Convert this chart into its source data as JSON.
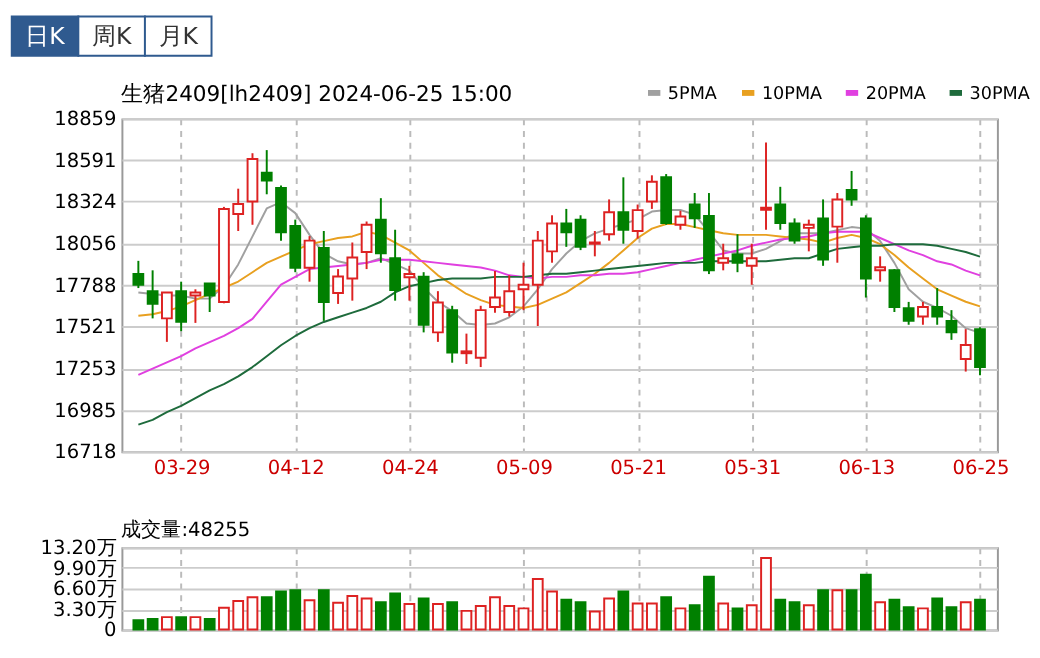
{
  "chart_data": [
    {
      "type": "candlestick",
      "title": "生猪2409[lh2409] 2024-06-25 15:00",
      "annotations": [
        "日K",
        "周K",
        "月K"
      ],
      "categories": [
        null,
        null,
        null,
        "03-29",
        null,
        null,
        null,
        null,
        null,
        null,
        null,
        "04-12",
        null,
        null,
        null,
        null,
        null,
        null,
        null,
        "04-24",
        null,
        null,
        null,
        null,
        null,
        null,
        null,
        "05-09",
        null,
        null,
        null,
        null,
        null,
        null,
        null,
        "05-21",
        null,
        null,
        null,
        null,
        null,
        null,
        null,
        "05-31",
        null,
        null,
        null,
        null,
        null,
        null,
        null,
        "06-13",
        null,
        null,
        null,
        null,
        null,
        null,
        null,
        "06-25"
      ],
      "ohlc": [
        [
          17858,
          17943,
          17768,
          17789
        ],
        [
          17748,
          17882,
          17573,
          17667
        ],
        [
          17573,
          17740,
          17422,
          17740
        ],
        [
          17748,
          17809,
          17491,
          17552
        ],
        [
          17720,
          17760,
          17544,
          17740
        ],
        [
          17797,
          17797,
          17614,
          17720
        ],
        [
          17679,
          18290,
          17670,
          18277
        ],
        [
          18244,
          18407,
          18135,
          18309
        ],
        [
          18324,
          18635,
          18175,
          18598
        ],
        [
          18509,
          18655,
          18371,
          18460
        ],
        [
          18411,
          18428,
          18073,
          18126
        ],
        [
          18167,
          18208,
          17870,
          17898
        ],
        [
          17898,
          18102,
          17809,
          18073
        ],
        [
          18025,
          18135,
          17557,
          17679
        ],
        [
          17736,
          17890,
          17666,
          17842
        ],
        [
          17829,
          18061,
          17687,
          17964
        ],
        [
          18000,
          18196,
          17890,
          18175
        ],
        [
          18208,
          18346,
          17931,
          17992
        ],
        [
          17960,
          18143,
          17687,
          17756
        ],
        [
          17838,
          17911,
          17687,
          17858
        ],
        [
          17841,
          17870,
          17483,
          17532
        ],
        [
          17483,
          17748,
          17422,
          17675
        ],
        [
          17626,
          17654,
          17288,
          17353
        ],
        [
          17349,
          17475,
          17280,
          17361
        ],
        [
          17320,
          17654,
          17260,
          17626
        ],
        [
          17646,
          17878,
          17610,
          17707
        ],
        [
          17614,
          17850,
          17585,
          17748
        ],
        [
          17760,
          17931,
          17626,
          17789
        ],
        [
          17789,
          18135,
          17524,
          18073
        ],
        [
          18004,
          18236,
          17931,
          18183
        ],
        [
          18183,
          18277,
          18033,
          18126
        ],
        [
          18208,
          18236,
          18012,
          18033
        ],
        [
          18053,
          18135,
          17972,
          18061
        ],
        [
          18114,
          18338,
          18073,
          18256
        ],
        [
          18256,
          18480,
          18053,
          18143
        ],
        [
          18135,
          18305,
          18086,
          18269
        ],
        [
          18324,
          18493,
          18277,
          18452
        ],
        [
          18480,
          18501,
          18175,
          18187
        ],
        [
          18175,
          18265,
          18143,
          18228
        ],
        [
          18305,
          18379,
          18155,
          18216
        ],
        [
          18232,
          18379,
          17858,
          17882
        ],
        [
          17931,
          18053,
          17882,
          17960
        ],
        [
          17984,
          18114,
          17870,
          17931
        ],
        [
          17911,
          18053,
          17789,
          17960
        ],
        [
          18272,
          18704,
          18143,
          18285
        ],
        [
          18305,
          18419,
          18143,
          18187
        ],
        [
          18183,
          18216,
          18053,
          18073
        ],
        [
          18155,
          18208,
          18004,
          18175
        ],
        [
          18216,
          18338,
          17911,
          17951
        ],
        [
          18163,
          18379,
          17931,
          18338
        ],
        [
          18399,
          18521,
          18297,
          18338
        ],
        [
          18216,
          18236,
          17707,
          17829
        ],
        [
          17882,
          17972,
          17809,
          17902
        ],
        [
          17882,
          17890,
          17614,
          17646
        ],
        [
          17638,
          17679,
          17532,
          17557
        ],
        [
          17585,
          17679,
          17532,
          17646
        ],
        [
          17646,
          17768,
          17532,
          17585
        ],
        [
          17557,
          17626,
          17435,
          17483
        ],
        [
          17312,
          17504,
          17231,
          17402
        ],
        [
          17504,
          17516,
          17207,
          17260
        ]
      ],
      "colors": [
        "#008000",
        "#008000",
        "#dd2222",
        "#008000",
        "#dd2222",
        "#008000",
        "#dd2222",
        "#dd2222",
        "#dd2222",
        "#008000",
        "#008000",
        "#008000",
        "#dd2222",
        "#008000",
        "#dd2222",
        "#dd2222",
        "#dd2222",
        "#008000",
        "#008000",
        "#dd2222",
        "#008000",
        "#dd2222",
        "#008000",
        "#dd2222",
        "#dd2222",
        "#dd2222",
        "#dd2222",
        "#dd2222",
        "#dd2222",
        "#dd2222",
        "#008000",
        "#008000",
        "#dd2222",
        "#dd2222",
        "#008000",
        "#dd2222",
        "#dd2222",
        "#008000",
        "#dd2222",
        "#008000",
        "#008000",
        "#dd2222",
        "#008000",
        "#dd2222",
        "#dd2222",
        "#008000",
        "#008000",
        "#dd2222",
        "#008000",
        "#dd2222",
        "#008000",
        "#008000",
        "#dd2222",
        "#008000",
        "#008000",
        "#dd2222",
        "#008000",
        "#008000",
        "#dd2222",
        "#008000"
      ],
      "series": [
        {
          "name": "5PMA",
          "type": "line",
          "color": "#a0a0a0",
          "values": [
            17740,
            17730,
            17720,
            17720,
            17700,
            17700,
            17780,
            17920,
            18100,
            18280,
            18320,
            18250,
            18110,
            17990,
            17940,
            17920,
            17930,
            17960,
            17920,
            17880,
            17770,
            17680,
            17620,
            17540,
            17530,
            17540,
            17580,
            17650,
            17760,
            17890,
            17990,
            18070,
            18120,
            18150,
            18180,
            18210,
            18260,
            18270,
            18270,
            18240,
            18130,
            18010,
            17990,
            17990,
            18020,
            18070,
            18120,
            18120,
            18120,
            18140,
            18160,
            18150,
            18070,
            17930,
            17760,
            17680,
            17640,
            17590,
            17510,
            17480
          ]
        },
        {
          "name": "10PMA",
          "type": "line",
          "color": "#e8a020",
          "values": [
            17590,
            17600,
            17620,
            17650,
            17690,
            17730,
            17770,
            17810,
            17870,
            17930,
            17970,
            18010,
            18050,
            18070,
            18090,
            18100,
            18130,
            18110,
            18060,
            18010,
            17930,
            17850,
            17790,
            17730,
            17690,
            17660,
            17650,
            17640,
            17660,
            17700,
            17740,
            17800,
            17860,
            17930,
            18010,
            18090,
            18150,
            18180,
            18180,
            18160,
            18140,
            18120,
            18110,
            18110,
            18110,
            18100,
            18090,
            18080,
            18060,
            18090,
            18110,
            18090,
            18050,
            17980,
            17900,
            17830,
            17760,
            17720,
            17680,
            17650
          ]
        },
        {
          "name": "20PMA",
          "type": "line",
          "color": "#e040e0",
          "values": [
            17210,
            17250,
            17290,
            17330,
            17380,
            17420,
            17460,
            17510,
            17570,
            17680,
            17790,
            17840,
            17890,
            17900,
            17910,
            17920,
            17930,
            17950,
            17950,
            17950,
            17940,
            17930,
            17920,
            17910,
            17900,
            17880,
            17850,
            17840,
            17830,
            17840,
            17840,
            17850,
            17850,
            17860,
            17860,
            17870,
            17890,
            17910,
            17930,
            17950,
            17970,
            17990,
            18010,
            18040,
            18060,
            18080,
            18090,
            18100,
            18120,
            18130,
            18130,
            18130,
            18090,
            18050,
            18010,
            17980,
            17940,
            17920,
            17880,
            17850
          ]
        },
        {
          "name": "30PMA",
          "type": "line",
          "color": "#1e6b3c",
          "values": [
            16890,
            16920,
            16970,
            17010,
            17060,
            17110,
            17150,
            17200,
            17260,
            17330,
            17400,
            17460,
            17510,
            17550,
            17580,
            17610,
            17640,
            17680,
            17740,
            17780,
            17800,
            17820,
            17830,
            17830,
            17830,
            17840,
            17840,
            17840,
            17850,
            17860,
            17860,
            17870,
            17880,
            17890,
            17900,
            17910,
            17920,
            17930,
            17930,
            17930,
            17940,
            17940,
            17940,
            17940,
            17940,
            17950,
            17960,
            17960,
            17990,
            18020,
            18030,
            18040,
            18040,
            18050,
            18050,
            18050,
            18040,
            18020,
            18000,
            17970
          ]
        }
      ],
      "ylim": [
        16718,
        18859
      ],
      "yticks": [
        16718,
        16985,
        17253,
        17521,
        17788,
        18056,
        18324,
        18591,
        18859
      ],
      "grid": true,
      "legend": "top right"
    },
    {
      "type": "bar",
      "title": "成交量:48255",
      "categories": [
        null,
        null,
        null,
        null,
        null,
        null,
        null,
        null,
        null,
        null,
        null,
        null,
        null,
        null,
        null,
        null,
        null,
        null,
        null,
        null,
        null,
        null,
        null,
        null,
        null,
        null,
        null,
        null,
        null,
        null,
        null,
        null,
        null,
        null,
        null,
        null,
        null,
        null,
        null,
        null,
        null,
        null,
        null,
        null,
        null,
        null,
        null,
        null,
        null,
        null,
        null,
        null,
        null,
        null,
        null,
        null,
        null,
        null,
        null,
        null
      ],
      "values": [
        1.5,
        1.7,
        2.0,
        2.0,
        2.0,
        1.7,
        3.5,
        4.6,
        5.2,
        5.2,
        6.1,
        6.3,
        4.7,
        6.3,
        4.3,
        5.4,
        5.0,
        4.4,
        5.8,
        4.1,
        5.0,
        4.1,
        4.4,
        3.0,
        3.8,
        5.2,
        3.8,
        3.4,
        8.1,
        6.1,
        4.8,
        4.4,
        2.9,
        5.0,
        6.1,
        4.2,
        4.2,
        5.2,
        3.4,
        3.9,
        8.5,
        4.2,
        3.4,
        3.9,
        11.5,
        4.8,
        4.4,
        3.9,
        6.3,
        6.3,
        6.3,
        8.8,
        4.4,
        4.8,
        3.6,
        3.4,
        5.0,
        3.6,
        4.4,
        4.8
      ],
      "colors": [
        "#008000",
        "#008000",
        "#dd2222",
        "#008000",
        "#dd2222",
        "#008000",
        "#dd2222",
        "#dd2222",
        "#dd2222",
        "#008000",
        "#008000",
        "#008000",
        "#dd2222",
        "#008000",
        "#dd2222",
        "#dd2222",
        "#dd2222",
        "#008000",
        "#008000",
        "#dd2222",
        "#008000",
        "#dd2222",
        "#008000",
        "#dd2222",
        "#dd2222",
        "#dd2222",
        "#dd2222",
        "#dd2222",
        "#dd2222",
        "#dd2222",
        "#008000",
        "#008000",
        "#dd2222",
        "#dd2222",
        "#008000",
        "#dd2222",
        "#dd2222",
        "#008000",
        "#dd2222",
        "#008000",
        "#008000",
        "#dd2222",
        "#008000",
        "#dd2222",
        "#dd2222",
        "#008000",
        "#008000",
        "#dd2222",
        "#008000",
        "#dd2222",
        "#008000",
        "#008000",
        "#dd2222",
        "#008000",
        "#008000",
        "#dd2222",
        "#008000",
        "#008000",
        "#dd2222",
        "#008000"
      ],
      "ylim": [
        0,
        13.2
      ],
      "yticks": [
        0,
        {
          "value": 3.3,
          "label": "3.30万"
        },
        {
          "value": 6.6,
          "label": "6.60万"
        },
        {
          "value": 9.9,
          "label": "9.90万"
        },
        {
          "value": 13.2,
          "label": "13.20万"
        }
      ],
      "grid": true,
      "tick_labels": "y"
    }
  ]
}
